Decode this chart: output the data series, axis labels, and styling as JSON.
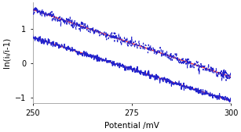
{
  "x_start": 250,
  "x_end": 300,
  "xlim": [
    250,
    300
  ],
  "ylim": [
    -1.15,
    1.75
  ],
  "xlabel": "Potential /mV",
  "ylabel": "ln(iₗ/i-1)",
  "yticks": [
    -1,
    0,
    1
  ],
  "xticks": [
    250,
    275,
    300
  ],
  "slope_ox_V": -37,
  "slope_red_V": -39,
  "ox_y_at_250": 0.75,
  "red_y_at_250": 1.55,
  "line_color": "#ff3333",
  "data_color": "#2222cc",
  "noise_amp_ox": 0.045,
  "noise_amp_red": 0.07,
  "background_color": "white",
  "spine_color": "#aaaaaa",
  "fig_width": 3.07,
  "fig_height": 1.69,
  "dpi": 100
}
